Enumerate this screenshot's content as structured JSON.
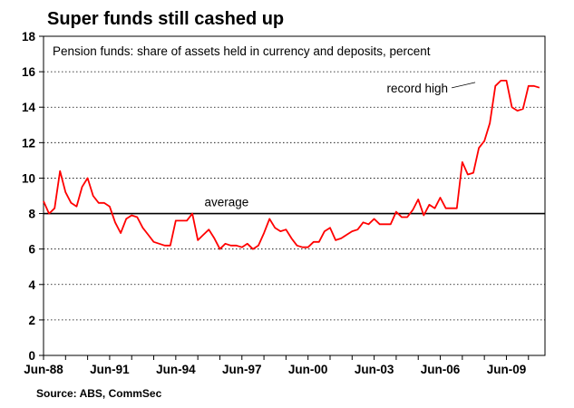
{
  "chart_data": {
    "type": "line",
    "title": "Super funds still cashed up",
    "subtitle": "Pension funds: share of assets held in currency and deposits, percent",
    "source": "Source: ABS, CommSec",
    "ylim": [
      0,
      18
    ],
    "yticks": [
      0,
      2,
      4,
      6,
      8,
      10,
      12,
      14,
      16,
      18
    ],
    "xlim": [
      1988.5,
      2011.25
    ],
    "xticks": [
      {
        "label": "Jun-88",
        "x": 1988.5
      },
      {
        "label": "Jun-91",
        "x": 1991.5
      },
      {
        "label": "Jun-94",
        "x": 1994.5
      },
      {
        "label": "Jun-97",
        "x": 1997.5
      },
      {
        "label": "Jun-00",
        "x": 2000.5
      },
      {
        "label": "Jun-03",
        "x": 2003.5
      },
      {
        "label": "Jun-06",
        "x": 2006.5
      },
      {
        "label": "Jun-09",
        "x": 2009.5
      }
    ],
    "grid": "horizontal-dotted",
    "reference_line": {
      "label": "average",
      "y": 8.0
    },
    "annotations": [
      {
        "text": "record high",
        "x": 2008.25,
        "y": 15.5
      }
    ],
    "series": [
      {
        "color": "#ff0000",
        "x": [
          1988.5,
          1988.75,
          1989.0,
          1989.25,
          1989.5,
          1989.75,
          1990.0,
          1990.25,
          1990.5,
          1990.75,
          1991.0,
          1991.25,
          1991.5,
          1991.75,
          1992.0,
          1992.25,
          1992.5,
          1992.75,
          1993.0,
          1993.25,
          1993.5,
          1993.75,
          1994.0,
          1994.25,
          1994.5,
          1994.75,
          1995.0,
          1995.25,
          1995.5,
          1995.75,
          1996.0,
          1996.25,
          1996.5,
          1996.75,
          1997.0,
          1997.25,
          1997.5,
          1997.75,
          1998.0,
          1998.25,
          1998.5,
          1998.75,
          1999.0,
          1999.25,
          1999.5,
          1999.75,
          2000.0,
          2000.25,
          2000.5,
          2000.75,
          2001.0,
          2001.25,
          2001.5,
          2001.75,
          2002.0,
          2002.25,
          2002.5,
          2002.75,
          2003.0,
          2003.25,
          2003.5,
          2003.75,
          2004.0,
          2004.25,
          2004.5,
          2004.75,
          2005.0,
          2005.25,
          2005.5,
          2005.75,
          2006.0,
          2006.25,
          2006.5,
          2006.75,
          2007.0,
          2007.25,
          2007.5,
          2007.75,
          2008.0,
          2008.25,
          2008.5,
          2008.75,
          2009.0,
          2009.25,
          2009.5,
          2009.75,
          2010.0,
          2010.25,
          2010.5,
          2010.75,
          2011.0
        ],
        "values": [
          8.7,
          8.0,
          8.3,
          10.4,
          9.2,
          8.6,
          8.4,
          9.5,
          10.0,
          9.0,
          8.6,
          8.6,
          8.4,
          7.5,
          6.9,
          7.7,
          7.9,
          7.8,
          7.2,
          6.8,
          6.4,
          6.3,
          6.2,
          6.2,
          7.6,
          7.6,
          7.6,
          8.0,
          6.5,
          6.8,
          7.1,
          6.6,
          6.0,
          6.3,
          6.2,
          6.2,
          6.1,
          6.3,
          6.0,
          6.2,
          6.9,
          7.7,
          7.2,
          7.0,
          7.1,
          6.6,
          6.2,
          6.1,
          6.1,
          6.4,
          6.4,
          7.0,
          7.2,
          6.5,
          6.6,
          6.8,
          7.0,
          7.1,
          7.5,
          7.4,
          7.7,
          7.4,
          7.4,
          7.4,
          8.1,
          7.8,
          7.8,
          8.2,
          8.8,
          7.9,
          8.5,
          8.3,
          8.9,
          8.3,
          8.3,
          8.3,
          10.9,
          10.2,
          10.3,
          11.7,
          12.1,
          13.1,
          15.2,
          15.5,
          15.5,
          14.0,
          13.8,
          13.9,
          15.2,
          15.2,
          15.1
        ]
      }
    ]
  }
}
